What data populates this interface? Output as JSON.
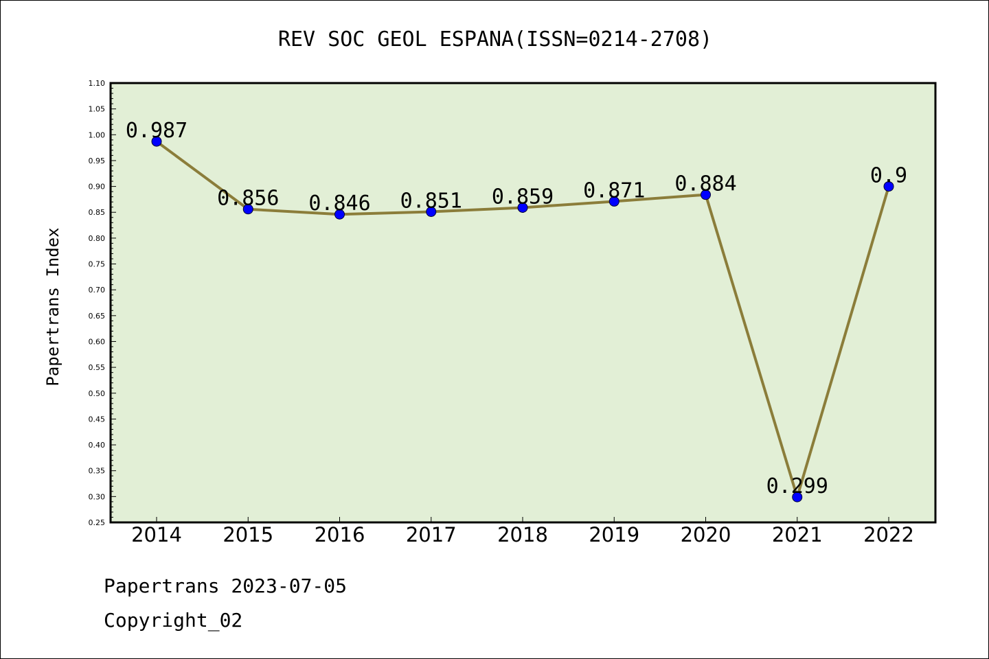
{
  "chart_data": {
    "type": "line",
    "title": "REV SOC GEOL ESPANA(ISSN=0214-2708)",
    "xlabel": "",
    "ylabel": "Papertrans Index",
    "categories": [
      "2014",
      "2015",
      "2016",
      "2017",
      "2018",
      "2019",
      "2020",
      "2021",
      "2022"
    ],
    "values": [
      0.987,
      0.856,
      0.846,
      0.851,
      0.859,
      0.871,
      0.884,
      0.299,
      0.9
    ],
    "data_labels": [
      "0.987",
      "0.856",
      "0.846",
      "0.851",
      "0.859",
      "0.871",
      "0.884",
      "0.299",
      "0.9"
    ],
    "ylim": [
      0.25,
      1.1
    ],
    "yticks": [
      "0.25",
      "0.30",
      "0.35",
      "0.40",
      "0.45",
      "0.50",
      "0.55",
      "0.60",
      "0.65",
      "0.70",
      "0.75",
      "0.80",
      "0.85",
      "0.90",
      "0.95",
      "1.00",
      "1.05",
      "1.10"
    ],
    "grid": false,
    "legend": "none",
    "colors": {
      "plot_background": "#e2efd6",
      "line": "#8b7d3a",
      "marker": "#0000ff",
      "axes": "#000000"
    }
  },
  "footer": {
    "line1": "Papertrans 2023-07-05",
    "line2": "Copyright_02"
  }
}
